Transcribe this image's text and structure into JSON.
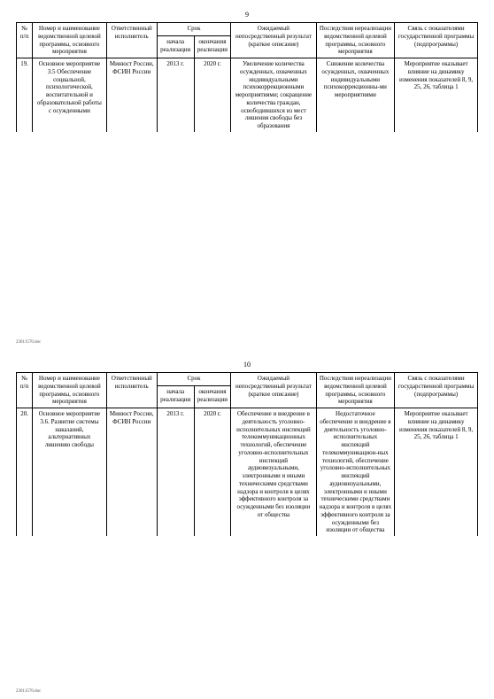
{
  "pages": [
    {
      "number": "9",
      "footer": "23011570.doc"
    },
    {
      "number": "10",
      "footer": "23011570.doc"
    }
  ],
  "headers": {
    "num": "№ п/п",
    "name": "Номер и наименование ведомственной целевой программы, основного мероприятия",
    "resp": "Ответственный исполнитель",
    "term": "Срок",
    "start": "начала реализации",
    "end": "окончания реализации",
    "result": "Ожидаемый непосредственный результат (краткое описание)",
    "cons": "Последствия нереализации ведомственной целевой программы, основного мероприятия",
    "link": "Связь с показателями государственной программы (подпрограммы)"
  },
  "rows": [
    {
      "num": "19.",
      "name": "Основное мероприятие 3.5\nОбеспечение социальной, психологической, воспитательной и образовательной работы с осужденными",
      "resp": "Минюст России, ФСИН России",
      "start": "2013 г.",
      "end": "2020 г.",
      "result": "Увеличение количества осужденных, охваченных индивидуальными психокоррекционными мероприятиями; сокращение количества граждан, освободившихся из мест лишения свободы без образования",
      "cons": "Снижение количества осужденных, охваченных индивидуальными психокоррекционны-ми мероприятиями",
      "link": "Мероприятие оказывает влияние на динамику изменения показателей 8, 9, 25, 26, таблица 1"
    },
    {
      "num": "20.",
      "name": "Основное мероприятие 3.6.\nРазвитие системы наказаний, альтернативных лишению свободы",
      "resp": "Минюст России, ФСИН России",
      "start": "2013 г.",
      "end": "2020 г.",
      "result": "Обеспечение и внедрение в деятельность уголовно-исполнительных инспекций телекоммуникационных технологий, обеспечение уголовно-исполнительных инспекций аудиовизуальными, электронными и иными техническими средствами надзора и контроля в целях эффективного контроля за осужденными без изоляции от общества",
      "cons": "Недостаточное обеспечение и внедрение в деятельность уголовно-исполнительных инспекций телекоммуникацион-ных технологий, обеспечение уголовно-исполнительных инспекций аудиовизуальными, электронными и иными техническими средствами надзора и контроля в целях эффективного контроля за осужденными без изоляции от общества",
      "link": "Мероприятие оказывает влияние на динамику изменения показателей 8, 9, 25, 26, таблица 1"
    }
  ]
}
